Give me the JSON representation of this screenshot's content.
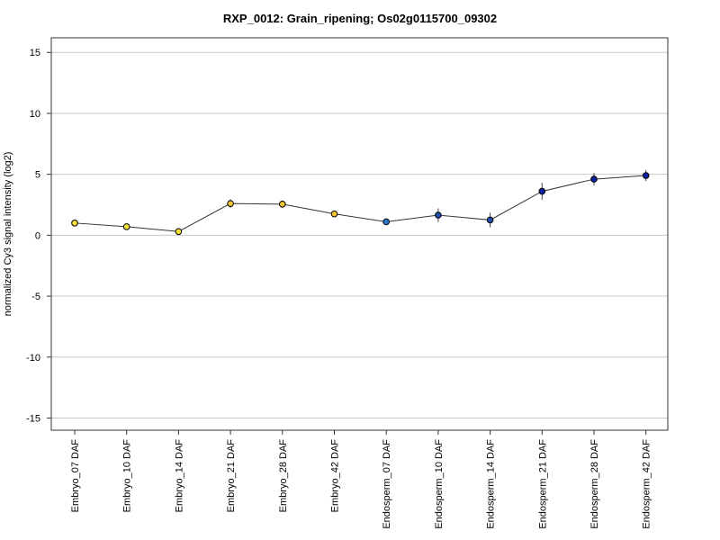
{
  "chart_data": {
    "type": "line",
    "title": "RXP_0012: Grain_ripening; Os02g0115700_09302",
    "xlabel": "",
    "ylabel": "normalized Cy3 signal intensity (log2)",
    "ylim": [
      -16,
      16.2
    ],
    "yticks": [
      -15,
      -10,
      -5,
      0,
      5,
      10,
      15
    ],
    "grid": true,
    "categories": [
      "Embryo_07 DAF",
      "Embryo_10 DAF",
      "Embryo_14 DAF",
      "Embryo_21 DAF",
      "Embryo_28 DAF",
      "Embryo_42 DAF",
      "Endosperm_07 DAF",
      "Endosperm_10 DAF",
      "Endosperm_14 DAF",
      "Endosperm_21 DAF",
      "Endosperm_28 DAF",
      "Endosperm_42 DAF"
    ],
    "series": [
      {
        "values": [
          1.0,
          0.7,
          0.3,
          2.6,
          2.55,
          1.75,
          1.1,
          1.65,
          1.25,
          3.6,
          4.6,
          4.9
        ],
        "errors": [
          0.15,
          0.2,
          0.2,
          0.35,
          0.3,
          0.2,
          0.2,
          0.55,
          0.6,
          0.7,
          0.5,
          0.45
        ],
        "colors": [
          "#f5e23a",
          "#f5e23a",
          "#f5e23a",
          "#f5c431",
          "#f5c431",
          "#f5c431",
          "#2e78c8",
          "#1d4fb0",
          "#1d4fb0",
          "#0b22a0",
          "#0b22a0",
          "#0b22a0"
        ]
      }
    ]
  }
}
